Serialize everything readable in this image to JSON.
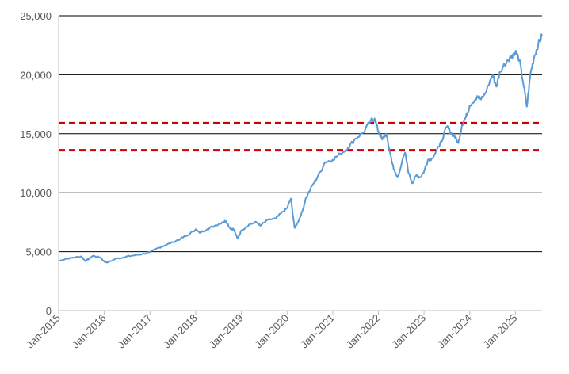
{
  "chart_data": {
    "type": "line",
    "title": "",
    "xlabel": "",
    "ylabel": "",
    "ylim": [
      0,
      25000
    ],
    "yticks": [
      0,
      5000,
      10000,
      15000,
      20000,
      25000
    ],
    "ytick_labels": [
      "0",
      "5,000",
      "10,000",
      "15,000",
      "20,000",
      "25,000"
    ],
    "xlim": [
      "2015-01",
      "2025-08"
    ],
    "xticks": [
      "2015-01",
      "2016-01",
      "2017-01",
      "2018-01",
      "2019-01",
      "2020-01",
      "2021-01",
      "2022-01",
      "2023-01",
      "2024-01",
      "2025-01"
    ],
    "xtick_labels": [
      "Jan-2015",
      "Jan-2016",
      "Jan-2017",
      "Jan-2018",
      "Jan-2019",
      "Jan-2020",
      "Jan-2021",
      "Jan-2022",
      "Jan-2023",
      "Jan-2024",
      "Jan-2025"
    ],
    "grid": "horizontal",
    "legend": "none",
    "series": [
      {
        "color": "#5b9bd5",
        "x": [
          "2015-01",
          "2015-03",
          "2015-05",
          "2015-07",
          "2015-08",
          "2015-09",
          "2015-10",
          "2015-12",
          "2016-01",
          "2016-02",
          "2016-04",
          "2016-06",
          "2016-07",
          "2016-09",
          "2016-11",
          "2017-01",
          "2017-03",
          "2017-05",
          "2017-07",
          "2017-09",
          "2017-11",
          "2018-01",
          "2018-02",
          "2018-04",
          "2018-06",
          "2018-08",
          "2018-09",
          "2018-10",
          "2018-11",
          "2018-12",
          "2019-01",
          "2019-03",
          "2019-05",
          "2019-06",
          "2019-08",
          "2019-10",
          "2019-12",
          "2020-01",
          "2020-02",
          "2020-03",
          "2020-04",
          "2020-05",
          "2020-06",
          "2020-08",
          "2020-09",
          "2020-11",
          "2021-01",
          "2021-03",
          "2021-05",
          "2021-07",
          "2021-09",
          "2021-11",
          "2021-12",
          "2022-01",
          "2022-02",
          "2022-03",
          "2022-04",
          "2022-05",
          "2022-06",
          "2022-08",
          "2022-09",
          "2022-10",
          "2022-11",
          "2022-12",
          "2023-01",
          "2023-02",
          "2023-03",
          "2023-05",
          "2023-07",
          "2023-08",
          "2023-09",
          "2023-10",
          "2023-11",
          "2023-12",
          "2024-01",
          "2024-03",
          "2024-04",
          "2024-05",
          "2024-07",
          "2024-08",
          "2024-09",
          "2024-11",
          "2024-12",
          "2025-01",
          "2025-02",
          "2025-03",
          "2025-04",
          "2025-05",
          "2025-06",
          "2025-07",
          "2025-08"
        ],
        "values": [
          4200,
          4400,
          4500,
          4600,
          4200,
          4400,
          4650,
          4500,
          4150,
          4100,
          4400,
          4500,
          4600,
          4700,
          4800,
          4950,
          5300,
          5550,
          5800,
          6100,
          6400,
          6900,
          6600,
          6900,
          7200,
          7500,
          7600,
          7000,
          6900,
          6100,
          6800,
          7300,
          7500,
          7200,
          7700,
          7800,
          8400,
          8700,
          9500,
          7000,
          7600,
          8400,
          9600,
          10800,
          11300,
          12600,
          12800,
          13300,
          13800,
          14600,
          15100,
          16100,
          16300,
          15200,
          14500,
          15000,
          13500,
          12000,
          11300,
          13400,
          11600,
          10800,
          11500,
          11300,
          11800,
          12800,
          12900,
          13900,
          15600,
          15100,
          14800,
          14200,
          15800,
          16400,
          17400,
          18200,
          17900,
          18400,
          20000,
          19000,
          20300,
          21300,
          21600,
          22000,
          21300,
          19400,
          17300,
          20200,
          21600,
          22600,
          23300
        ]
      }
    ],
    "reference_lines": [
      {
        "y": 15900,
        "color": "#cc0000",
        "style": "dashed"
      },
      {
        "y": 13600,
        "color": "#cc0000",
        "style": "dashed"
      }
    ]
  }
}
